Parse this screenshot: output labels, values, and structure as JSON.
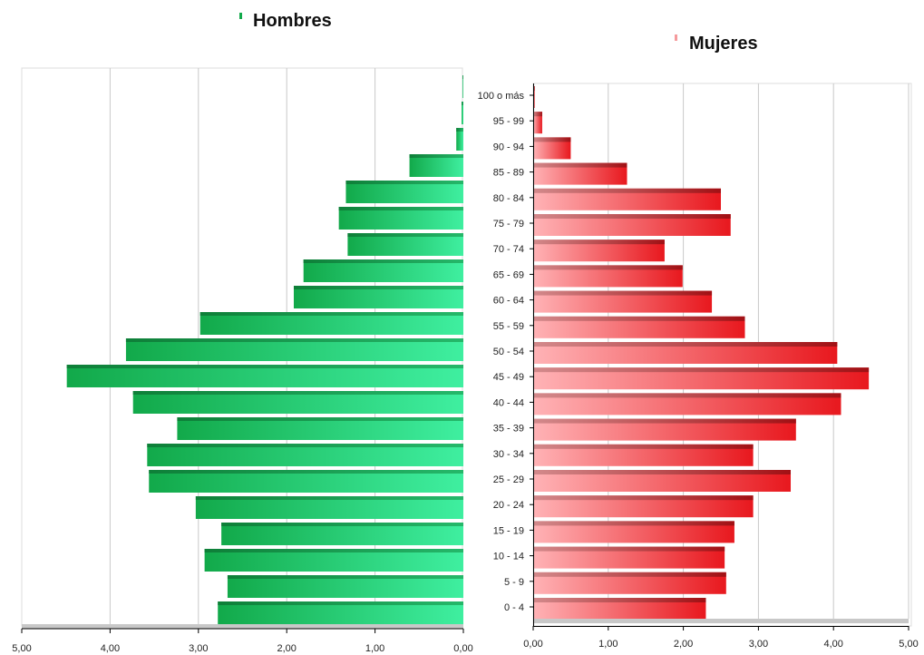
{
  "chart_data": [
    {
      "type": "bar",
      "orientation": "horizontal",
      "direction": "reversed",
      "legend": {
        "label": "Hombres",
        "position": "top-center"
      },
      "color": "#22c766",
      "xlim": [
        0,
        5
      ],
      "x_ticks": [
        "5,00",
        "4,00",
        "3,00",
        "2,00",
        "1,00",
        "0,00"
      ],
      "grid": true,
      "categories": [
        "0 - 4",
        "5 - 9",
        "10 - 14",
        "15 - 19",
        "20 - 24",
        "25 - 29",
        "30 - 34",
        "35 - 39",
        "40 - 44",
        "45 - 49",
        "50 - 54",
        "55 - 59",
        "60 - 64",
        "65 - 69",
        "70 - 74",
        "75 - 79",
        "80 - 84",
        "85 - 89",
        "90 - 94",
        "95 - 99",
        "100 o más"
      ],
      "values": [
        2.78,
        2.67,
        2.93,
        2.74,
        3.03,
        3.56,
        3.58,
        3.24,
        3.74,
        4.49,
        3.82,
        2.98,
        1.92,
        1.81,
        1.31,
        1.41,
        1.33,
        0.61,
        0.08,
        0.02,
        0.0
      ]
    },
    {
      "type": "bar",
      "orientation": "horizontal",
      "legend": {
        "label": "Mujeres",
        "position": "top-center"
      },
      "color": "#e8282e",
      "xlim": [
        0,
        5
      ],
      "x_ticks": [
        "0,00",
        "1,00",
        "2,00",
        "3,00",
        "4,00",
        "5,00"
      ],
      "grid": true,
      "categories": [
        "0 - 4",
        "5 - 9",
        "10 - 14",
        "15 - 19",
        "20 - 24",
        "25 - 29",
        "30 - 34",
        "35 - 39",
        "40 - 44",
        "45 - 49",
        "50 - 54",
        "55 - 59",
        "60 - 64",
        "65 - 69",
        "70 - 74",
        "75 - 79",
        "80 - 84",
        "85 - 89",
        "90 - 94",
        "95 - 99",
        "100 o más"
      ],
      "values": [
        2.3,
        2.57,
        2.55,
        2.68,
        2.93,
        3.43,
        2.93,
        3.5,
        4.1,
        4.47,
        4.05,
        2.82,
        2.38,
        1.99,
        1.75,
        2.63,
        2.5,
        1.25,
        0.5,
        0.12,
        0.02
      ]
    }
  ]
}
